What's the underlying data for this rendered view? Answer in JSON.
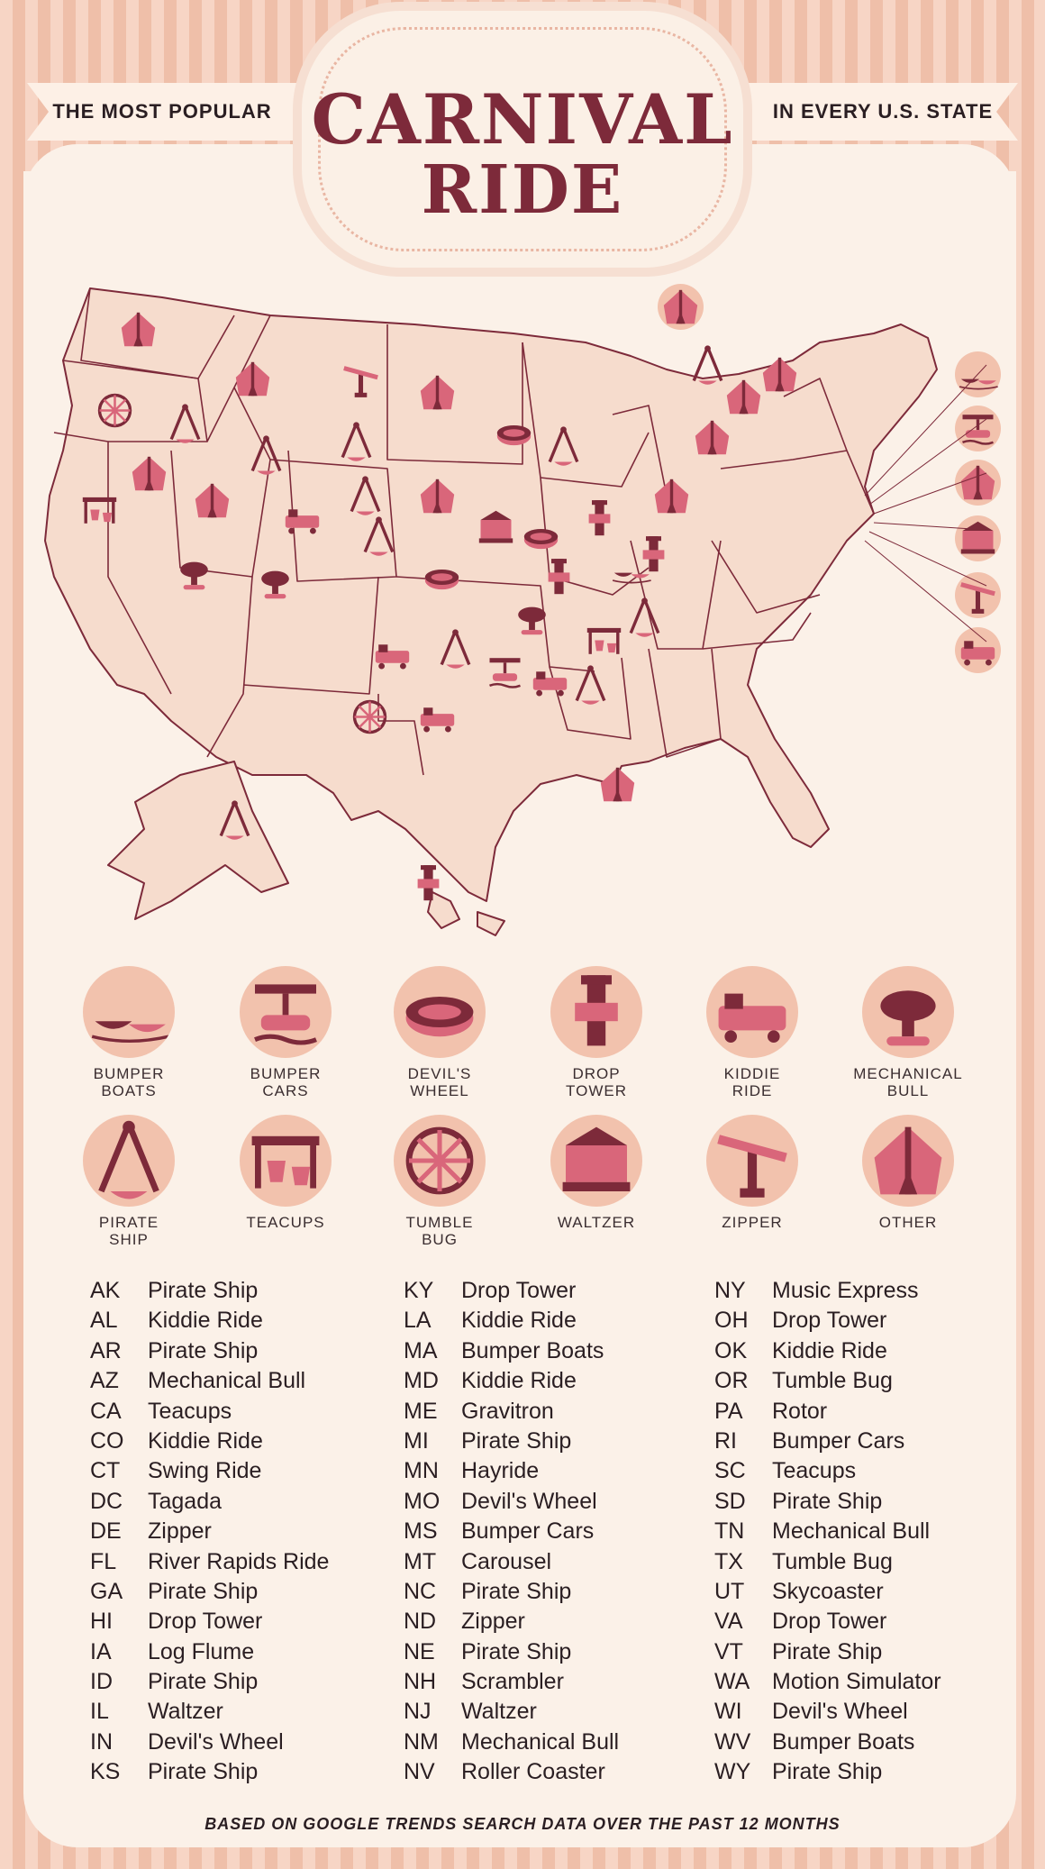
{
  "header": {
    "left_ribbon": "THE MOST POPULAR",
    "title_line1": "CARNIVAL",
    "title_line2": "RIDE",
    "right_ribbon": "IN EVERY U.S. STATE"
  },
  "colors": {
    "accent": "#7d2a3a",
    "ride_pink": "#d9667a",
    "map_fill": "#f6dccd",
    "background": "#fbf1e8",
    "stripe": "#efbfa9"
  },
  "legend": [
    {
      "label": "BUMPER\nBOATS",
      "icon": "bumper-boats-icon"
    },
    {
      "label": "BUMPER\nCARS",
      "icon": "bumper-cars-icon"
    },
    {
      "label": "DEVIL'S\nWHEEL",
      "icon": "devils-wheel-icon"
    },
    {
      "label": "DROP\nTOWER",
      "icon": "drop-tower-icon"
    },
    {
      "label": "KIDDIE\nRIDE",
      "icon": "kiddie-ride-icon"
    },
    {
      "label": "MECHANICAL\nBULL",
      "icon": "mechanical-bull-icon"
    },
    {
      "label": "PIRATE\nSHIP",
      "icon": "pirate-ship-icon"
    },
    {
      "label": "TEACUPS",
      "icon": "teacups-icon"
    },
    {
      "label": "TUMBLE\nBUG",
      "icon": "tumble-bug-icon"
    },
    {
      "label": "WALTZER",
      "icon": "waltzer-icon"
    },
    {
      "label": "ZIPPER",
      "icon": "zipper-icon"
    },
    {
      "label": "OTHER",
      "icon": "circus-tent-icon"
    }
  ],
  "states": [
    [
      "AK",
      "Pirate Ship"
    ],
    [
      "AL",
      "Kiddie Ride"
    ],
    [
      "AR",
      "Pirate Ship"
    ],
    [
      "AZ",
      "Mechanical Bull"
    ],
    [
      "CA",
      "Teacups"
    ],
    [
      "CO",
      "Kiddie Ride"
    ],
    [
      "CT",
      "Swing Ride"
    ],
    [
      "DC",
      "Tagada"
    ],
    [
      "DE",
      "Zipper"
    ],
    [
      "FL",
      "River Rapids Ride"
    ],
    [
      "GA",
      "Pirate Ship"
    ],
    [
      "HI",
      "Drop Tower"
    ],
    [
      "IA",
      "Log Flume"
    ],
    [
      "ID",
      "Pirate Ship"
    ],
    [
      "IL",
      "Waltzer"
    ],
    [
      "IN",
      "Devil's Wheel"
    ],
    [
      "KS",
      "Pirate Ship"
    ],
    [
      "KY",
      "Drop Tower"
    ],
    [
      "LA",
      "Kiddie Ride"
    ],
    [
      "MA",
      "Bumper Boats"
    ],
    [
      "MD",
      "Kiddie Ride"
    ],
    [
      "ME",
      "Gravitron"
    ],
    [
      "MI",
      "Pirate Ship"
    ],
    [
      "MN",
      "Hayride"
    ],
    [
      "MO",
      "Devil's Wheel"
    ],
    [
      "MS",
      "Bumper Cars"
    ],
    [
      "MT",
      "Carousel"
    ],
    [
      "NC",
      "Pirate Ship"
    ],
    [
      "ND",
      "Zipper"
    ],
    [
      "NE",
      "Pirate Ship"
    ],
    [
      "NH",
      "Scrambler"
    ],
    [
      "NJ",
      "Waltzer"
    ],
    [
      "NM",
      "Mechanical Bull"
    ],
    [
      "NV",
      "Roller Coaster"
    ],
    [
      "NY",
      "Music Express"
    ],
    [
      "OH",
      "Drop Tower"
    ],
    [
      "OK",
      "Kiddie Ride"
    ],
    [
      "OR",
      "Tumble Bug"
    ],
    [
      "PA",
      "Rotor"
    ],
    [
      "RI",
      "Bumper Cars"
    ],
    [
      "SC",
      "Teacups"
    ],
    [
      "SD",
      "Pirate Ship"
    ],
    [
      "TN",
      "Mechanical Bull"
    ],
    [
      "TX",
      "Tumble Bug"
    ],
    [
      "UT",
      "Skycoaster"
    ],
    [
      "VA",
      "Drop Tower"
    ],
    [
      "VT",
      "Pirate Ship"
    ],
    [
      "WA",
      "Motion Simulator"
    ],
    [
      "WI",
      "Devil's Wheel"
    ],
    [
      "WV",
      "Bumper Boats"
    ],
    [
      "WY",
      "Pirate Ship"
    ]
  ],
  "map_icons": [
    [
      "WA",
      "circus-tent-icon"
    ],
    [
      "OR",
      "tumble-bug-icon"
    ],
    [
      "CA",
      "teacups-icon"
    ],
    [
      "ID",
      "pirate-ship-icon"
    ],
    [
      "NV",
      "circus-tent-icon"
    ],
    [
      "MT",
      "circus-tent-icon"
    ],
    [
      "WY",
      "pirate-ship-icon"
    ],
    [
      "UT",
      "circus-tent-icon"
    ],
    [
      "AZ",
      "mechanical-bull-icon"
    ],
    [
      "CO",
      "kiddie-ride-icon"
    ],
    [
      "NM",
      "mechanical-bull-icon"
    ],
    [
      "ND",
      "zipper-icon"
    ],
    [
      "SD",
      "pirate-ship-icon"
    ],
    [
      "NE",
      "pirate-ship-icon"
    ],
    [
      "KS",
      "pirate-ship-icon"
    ],
    [
      "OK",
      "kiddie-ride-icon"
    ],
    [
      "TX",
      "tumble-bug-icon"
    ],
    [
      "MN",
      "circus-tent-icon"
    ],
    [
      "IA",
      "circus-tent-icon"
    ],
    [
      "MO",
      "devils-wheel-icon"
    ],
    [
      "AR",
      "pirate-ship-icon"
    ],
    [
      "LA",
      "kiddie-ride-icon"
    ],
    [
      "WI",
      "devils-wheel-icon"
    ],
    [
      "IL",
      "waltzer-icon"
    ],
    [
      "MS",
      "bumper-cars-icon"
    ],
    [
      "MI",
      "pirate-ship-icon"
    ],
    [
      "IN",
      "devils-wheel-icon"
    ],
    [
      "KY",
      "drop-tower-icon"
    ],
    [
      "TN",
      "mechanical-bull-icon"
    ],
    [
      "AL",
      "kiddie-ride-icon"
    ],
    [
      "GA",
      "pirate-ship-icon"
    ],
    [
      "FL",
      "circus-tent-icon"
    ],
    [
      "OH",
      "drop-tower-icon"
    ],
    [
      "WV",
      "bumper-boats-icon"
    ],
    [
      "VA",
      "drop-tower-icon"
    ],
    [
      "NC",
      "pirate-ship-icon"
    ],
    [
      "SC",
      "teacups-icon"
    ],
    [
      "PA",
      "circus-tent-icon"
    ],
    [
      "NY",
      "circus-tent-icon"
    ],
    [
      "VT",
      "pirate-ship-icon"
    ],
    [
      "NH",
      "circus-tent-icon"
    ],
    [
      "ME",
      "circus-tent-icon"
    ],
    [
      "AK",
      "pirate-ship-icon"
    ],
    [
      "HI",
      "drop-tower-icon"
    ],
    [
      "MA",
      "bumper-boats-icon"
    ],
    [
      "RI",
      "bumper-cars-icon"
    ],
    [
      "CT",
      "circus-tent-icon"
    ],
    [
      "NJ",
      "waltzer-icon"
    ],
    [
      "DE",
      "zipper-icon"
    ],
    [
      "MD",
      "kiddie-ride-icon"
    ],
    [
      "DC",
      "circus-tent-icon"
    ]
  ],
  "footer": "BASED ON GOOGLE TRENDS SEARCH DATA OVER THE PAST 12 MONTHS"
}
